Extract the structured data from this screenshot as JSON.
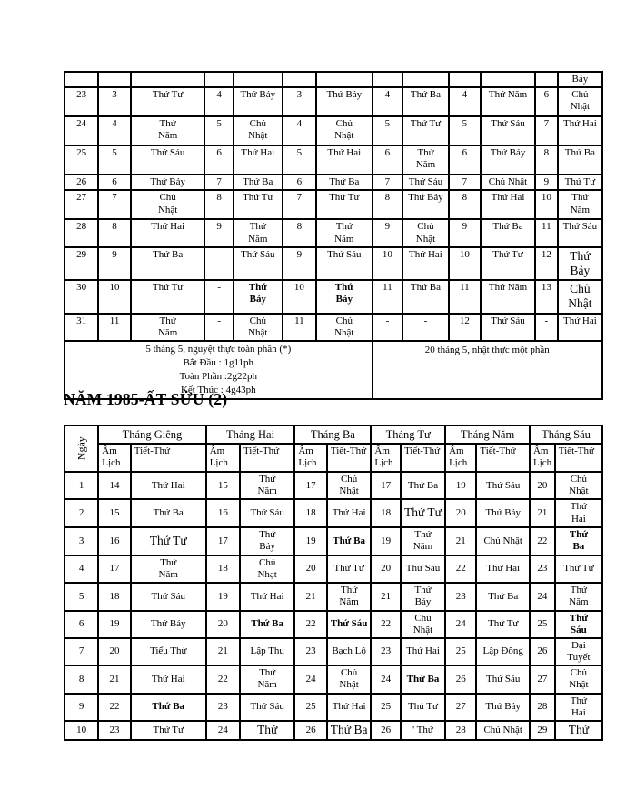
{
  "document": {
    "heading": "NĂM 1985-ẤT SỬU (2)"
  },
  "continuation_table": {
    "partial_row_last_cell": "Bảy",
    "rows": [
      [
        "23",
        "3",
        "Thứ Tư",
        "4",
        "Thứ Bảy",
        "3",
        "Thứ Bảy",
        "4",
        "Thứ Ba",
        "4",
        "Thứ Năm",
        "6",
        {
          "t": "Chủ\nNhật"
        }
      ],
      [
        "24",
        "4",
        {
          "t": "Thứ\nNăm"
        },
        "5",
        {
          "t": "Chủ\nNhật"
        },
        "4",
        {
          "t": "Chủ\nNhật"
        },
        "5",
        "Thứ Tư",
        "5",
        "Thứ Sáu",
        "7",
        "Thứ Hai"
      ],
      [
        "25",
        "5",
        "Thứ Sáu",
        "6",
        "Thứ Hai",
        "5",
        "Thứ Hai",
        "6",
        {
          "t": "Thứ\nNăm"
        },
        "6",
        "Thứ Bảy",
        "8",
        "Thứ Ba"
      ],
      [
        "26",
        "6",
        "Thứ Bảy",
        "7",
        "Thứ Ba",
        "6",
        "Thứ Ba",
        "7",
        "Thứ Sáu",
        "7",
        "Chủ Nhật",
        "9",
        "Thứ Tư"
      ],
      [
        "27",
        "7",
        {
          "t": "Chủ\nNhật"
        },
        "8",
        "Thứ Tư",
        "7",
        "Thứ Tư",
        "8",
        "Thứ Bảy",
        "8",
        "Thứ Hai",
        "10",
        {
          "t": "Thứ\nNăm"
        }
      ],
      [
        "28",
        "8",
        "Thứ Hai",
        "9",
        {
          "t": "Thứ\nNăm"
        },
        "8",
        {
          "t": "Thứ\nNăm"
        },
        "9",
        {
          "t": "Chủ\nNhật"
        },
        "9",
        "Thứ Ba",
        "11",
        "Thứ Sáu"
      ],
      [
        "29",
        "9",
        "Thứ Ba",
        "-",
        "Thứ Sáu",
        "9",
        "Thứ Sáu",
        "10",
        "Thứ Hai",
        "10",
        "Thứ Tư",
        "12",
        {
          "t": "Thứ\nBảy",
          "f": "lg"
        }
      ],
      [
        "30",
        "10",
        "Thứ Tư",
        "-",
        {
          "t": "Thứ\nBảy",
          "f": "b"
        },
        "10",
        {
          "t": "Thứ\nBảy",
          "f": "b"
        },
        "11",
        "Thứ Ba",
        "11",
        "Thứ Năm",
        "13",
        {
          "t": "Chủ\nNhật",
          "f": "lg"
        }
      ],
      [
        "31",
        "11",
        {
          "t": "Thứ\nNăm"
        },
        "-",
        {
          "t": "Chủ\nNhật"
        },
        "11",
        {
          "t": "Chủ\nNhật"
        },
        "-",
        "-",
        "12",
        "Thứ Sáu",
        "-",
        "Thứ Hai"
      ]
    ],
    "eclipse_notes": {
      "left_lines": [
        "5 tháng 5, nguyệt thực toàn phần (*)",
        "Bắt Đầu : 1g11ph",
        "Toàn Phần :2g22ph",
        "Kết Thúc : 4g43ph"
      ],
      "right": "20 tháng 5, nhật thực một phần"
    }
  },
  "year_table": {
    "day_column_header": "Ngày",
    "month_headers": [
      "Tháng Giêng",
      "Tháng Hai",
      "Tháng Ba",
      "Tháng Tư",
      "Tháng Năm",
      "Tháng Sáu"
    ],
    "subheader_lunar": "Âm Lịch",
    "subheader_term_weekday": "Tiết-Thứ",
    "rows": [
      [
        "1",
        "14",
        "Thứ Hai",
        "15",
        {
          "t": "Thứ\nNăm"
        },
        "17",
        {
          "t": "Chủ\nNhật"
        },
        "17",
        "Thứ Ba",
        "19",
        "Thứ Sáu",
        "20",
        {
          "t": "Chủ\nNhật"
        }
      ],
      [
        "2",
        "15",
        "Thứ Ba",
        "16",
        "Thứ Sáu",
        "18",
        "Thứ Hai",
        "18",
        {
          "t": "Thứ Tư",
          "f": "lg"
        },
        "20",
        "Thứ Bảy",
        "21",
        {
          "t": "Thứ\nHai"
        }
      ],
      [
        "3",
        "16",
        {
          "t": "Thứ Tư",
          "f": "lg"
        },
        "17",
        {
          "t": "Thứ\nBảy"
        },
        "19",
        {
          "t": "Thứ Ba",
          "f": "b"
        },
        "19",
        {
          "t": "Thứ\nNăm"
        },
        "21",
        "Chủ Nhật",
        "22",
        {
          "t": "Thứ\nBa",
          "f": "b"
        }
      ],
      [
        "4",
        "17",
        {
          "t": "Thứ\nNăm"
        },
        "18",
        {
          "t": "Chủ\nNhạt"
        },
        "20",
        "Thứ Tư",
        "20",
        "Thứ Sáu",
        "22",
        "Thứ Hai",
        "23",
        "Thứ Tư"
      ],
      [
        "5",
        "18",
        "Thứ Sáu",
        "19",
        "Thứ Hai",
        "21",
        {
          "t": "Thứ\nNăm"
        },
        "21",
        {
          "t": "Thứ\nBảy"
        },
        "23",
        "Thứ Ba",
        "24",
        {
          "t": "Thứ\nNăm"
        }
      ],
      [
        "6",
        "19",
        "Thứ Bảy",
        "20",
        {
          "t": "Thứ Ba",
          "f": "b"
        },
        "22",
        {
          "t": "Thứ Sáu",
          "f": "b"
        },
        "22",
        {
          "t": "Chủ\nNhật"
        },
        "24",
        "Thứ Tư",
        "25",
        {
          "t": "Thứ\nSáu",
          "f": "b"
        }
      ],
      [
        "7",
        "20",
        "Tiểu Thử",
        "21",
        "Lập Thu",
        "23",
        "Bạch Lộ",
        "23",
        "Thứ Hai",
        "25",
        "Lập Đông",
        "26",
        {
          "t": "Đại\nTuyết"
        }
      ],
      [
        "8",
        "21",
        "Thứ Hai",
        "22",
        {
          "t": "Thứ\nNăm"
        },
        "24",
        {
          "t": "Chủ\nNhật"
        },
        "24",
        {
          "t": "Thứ Ba",
          "f": "b"
        },
        "26",
        "Thứ Sáu",
        "27",
        {
          "t": "Chủ\nNhật"
        }
      ],
      [
        "9",
        "22",
        {
          "t": "Thứ Ba",
          "f": "b"
        },
        "23",
        "Thứ Sáu",
        "25",
        "Thứ Hai",
        "25",
        "Thú Tư",
        "27",
        "Thứ Bảy",
        "28",
        {
          "t": "Thứ\nHai"
        }
      ],
      [
        "10",
        "23",
        "Thứ Tư",
        "24",
        {
          "t": "Thứ",
          "f": "lg"
        },
        "26",
        {
          "t": "Thứ Ba",
          "f": "lg"
        },
        "26",
        "' Thứ",
        "28",
        "Chủ Nhật",
        "29",
        {
          "t": "Thứ",
          "f": "lg"
        }
      ]
    ]
  }
}
